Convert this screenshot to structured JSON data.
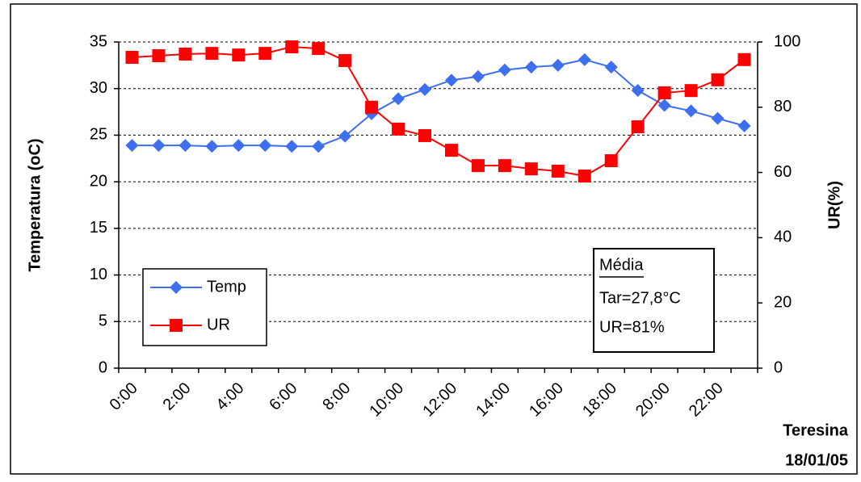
{
  "chart_data": {
    "type": "line",
    "y_label": "Temperatura (oC)",
    "y2_label": "UR(%)",
    "categories": [
      "0:00",
      null,
      "2:00",
      null,
      "4:00",
      null,
      "6:00",
      null,
      "8:00",
      null,
      "10:00",
      null,
      "12:00",
      null,
      "14:00",
      null,
      "16:00",
      null,
      "18:00",
      null,
      "20:00",
      null,
      "22:00",
      null
    ],
    "series": [
      {
        "name": "Temp",
        "color": "#3d6ff0",
        "marker": "diamond",
        "values": [
          23.9,
          23.9,
          23.9,
          23.8,
          23.9,
          23.9,
          23.8,
          23.8,
          24.9,
          27.3,
          28.9,
          29.9,
          30.9,
          31.3,
          32.0,
          32.3,
          32.5,
          33.1,
          32.3,
          29.8,
          28.2,
          27.6,
          26.8,
          26.0
        ]
      },
      {
        "name": "UR",
        "color": "#ff0000",
        "marker": "square",
        "axis": "y2",
        "values": [
          95.3,
          95.8,
          96.3,
          96.5,
          96.0,
          96.5,
          98.5,
          98.0,
          94.3,
          80.0,
          73.3,
          71.3,
          66.8,
          62.1,
          62.1,
          61.1,
          60.4,
          58.9,
          63.6,
          74.0,
          84.4,
          85.1,
          88.4,
          94.6
        ]
      }
    ],
    "ylim": [
      0,
      35
    ],
    "yticks": [
      0,
      5,
      10,
      15,
      20,
      25,
      30,
      35
    ],
    "y2lim": [
      0,
      100
    ],
    "y2ticks": [
      0,
      20,
      40,
      60,
      80,
      100
    ],
    "grid": true,
    "legend": "bottom-left",
    "annotation": {
      "title": "Média",
      "lines": [
        "Tar=27,8°C",
        "UR=81%"
      ]
    },
    "caption": [
      "Teresina",
      "18/01/05"
    ]
  }
}
